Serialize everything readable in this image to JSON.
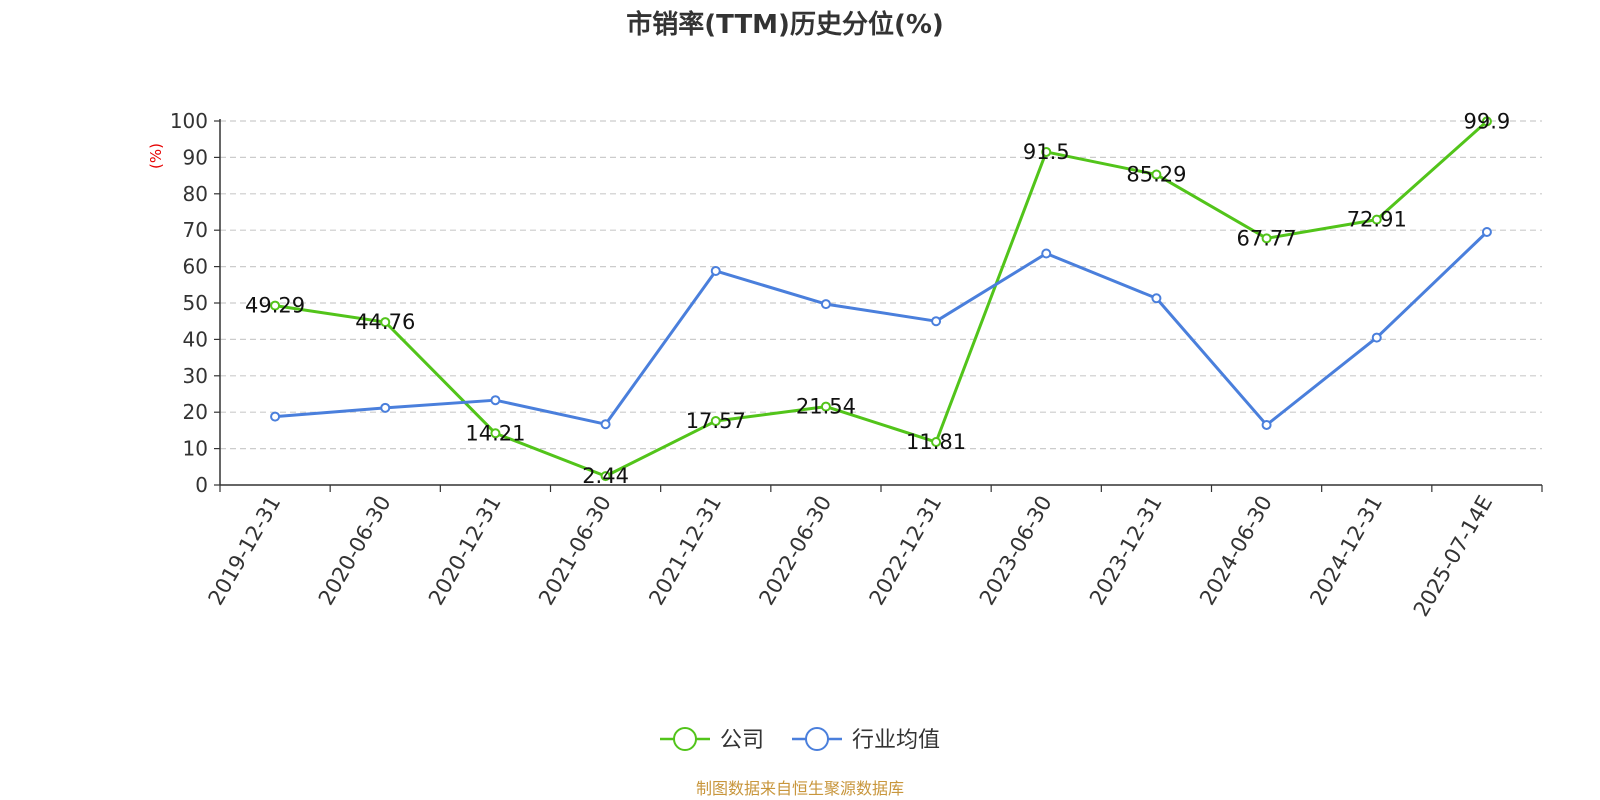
{
  "chart_data": {
    "type": "line",
    "title": "市销率(TTM)历史分位(%)",
    "ylabel": "(%)",
    "ylim": [
      0,
      100
    ],
    "yticks": [
      0,
      10,
      20,
      30,
      40,
      50,
      60,
      70,
      80,
      90,
      100
    ],
    "grid": true,
    "legend_position": "bottom-center",
    "categories": [
      "2019-12-31",
      "2020-06-30",
      "2020-12-31",
      "2021-06-30",
      "2021-12-31",
      "2022-06-30",
      "2022-12-31",
      "2023-06-30",
      "2023-12-31",
      "2024-06-30",
      "2024-12-31",
      "2025-07-14E"
    ],
    "series": [
      {
        "name": "公司",
        "color": "#52c41a",
        "values": [
          49.29,
          44.76,
          14.21,
          2.44,
          17.57,
          21.54,
          11.81,
          91.5,
          85.29,
          67.77,
          72.91,
          99.9
        ],
        "labels": [
          "49.29",
          "44.76",
          "14.21",
          "2.44",
          "17.57",
          "21.54",
          "11.81",
          "91.5",
          "85.29",
          "67.77",
          "72.91",
          "99.9"
        ]
      },
      {
        "name": "行业均值",
        "color": "#4a7fdc",
        "values": [
          18.8,
          21.2,
          23.3,
          16.7,
          58.8,
          49.7,
          45.0,
          63.6,
          51.3,
          16.5,
          40.5,
          69.5
        ]
      }
    ],
    "source": "制图数据来自恒生聚源数据库"
  }
}
